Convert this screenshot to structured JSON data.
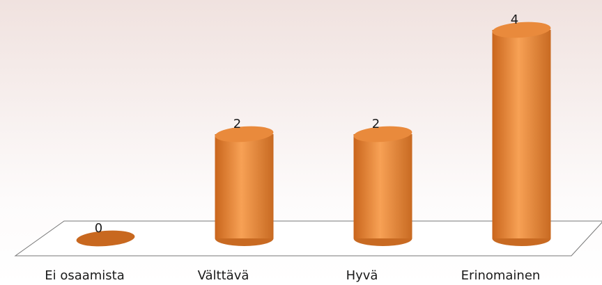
{
  "chart_data": {
    "type": "bar",
    "categories": [
      "Ei osaamista",
      "Välttävä",
      "Hyvä",
      "Erinomainen"
    ],
    "values": [
      0,
      2,
      2,
      4
    ],
    "color": "#f0904a"
  }
}
